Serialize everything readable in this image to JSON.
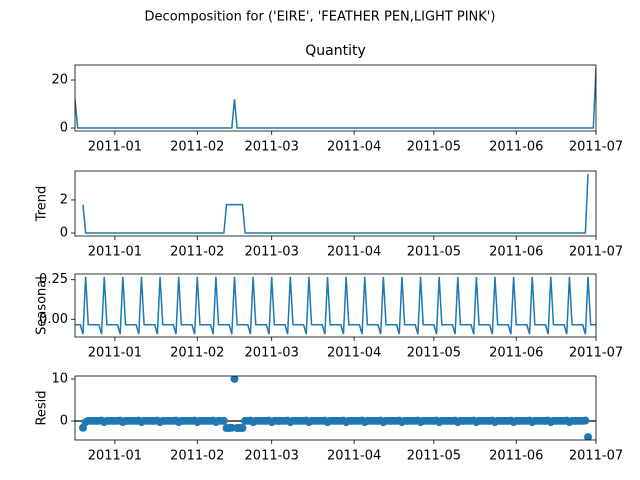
{
  "chart_data": {
    "type": "decomposition",
    "title": "Decomposition for ('EIRE', 'FEATHER PEN,LIGHT PINK')",
    "x": [
      14960,
      14961,
      14962,
      14963,
      14964,
      14965,
      14966,
      14967,
      14968,
      14969,
      14970,
      14971,
      14972,
      14973,
      14974,
      14975,
      14976,
      14977,
      14978,
      14979,
      14980,
      14981,
      14982,
      14983,
      14984,
      14985,
      14986,
      14987,
      14988,
      14989,
      14990,
      14991,
      14992,
      14993,
      14994,
      14995,
      14996,
      14997,
      14998,
      14999,
      15000,
      15001,
      15002,
      15003,
      15004,
      15005,
      15006,
      15007,
      15008,
      15009,
      15010,
      15011,
      15012,
      15013,
      15014,
      15015,
      15016,
      15017,
      15018,
      15019,
      15020,
      15021,
      15022,
      15023,
      15024,
      15025,
      15026,
      15027,
      15028,
      15029,
      15030,
      15031,
      15032,
      15033,
      15034,
      15035,
      15036,
      15037,
      15038,
      15039,
      15040,
      15041,
      15042,
      15043,
      15044,
      15045,
      15046,
      15047,
      15048,
      15049,
      15050,
      15051,
      15052,
      15053,
      15054,
      15055,
      15056,
      15057,
      15058,
      15059,
      15060,
      15061,
      15062,
      15063,
      15064,
      15065,
      15066,
      15067,
      15068,
      15069,
      15070,
      15071,
      15072,
      15073,
      15074,
      15075,
      15076,
      15077,
      15078,
      15079,
      15080,
      15081,
      15082,
      15083,
      15084,
      15085,
      15086,
      15087,
      15088,
      15089,
      15090,
      15091,
      15092,
      15093,
      15094,
      15095,
      15096,
      15097,
      15098,
      15099,
      15100,
      15101,
      15102,
      15103,
      15104,
      15105,
      15106,
      15107,
      15108,
      15109,
      15110,
      15111,
      15112,
      15113,
      15114,
      15115,
      15116,
      15117,
      15118,
      15119,
      15120,
      15121,
      15122,
      15123,
      15124,
      15125,
      15126,
      15127,
      15128,
      15129,
      15130,
      15131,
      15132,
      15133,
      15134,
      15135,
      15136,
      15137,
      15138,
      15139,
      15140,
      15141,
      15142,
      15143,
      15144,
      15145,
      15146,
      15147,
      15148,
      15149,
      15150,
      15151,
      15152,
      15153,
      15154,
      15155,
      15156
    ],
    "xlim": [
      14960,
      15156
    ],
    "xticks": [
      {
        "value": 14975,
        "label": "2011-01"
      },
      {
        "value": 15006,
        "label": "2011-02"
      },
      {
        "value": 15034,
        "label": "2011-03"
      },
      {
        "value": 15065,
        "label": "2011-04"
      },
      {
        "value": 15095,
        "label": "2011-05"
      },
      {
        "value": 15126,
        "label": "2011-06"
      },
      {
        "value": 15156,
        "label": "2011-07"
      }
    ],
    "panels": [
      {
        "type": "line",
        "title": "Quantity",
        "color": "#1f77b4",
        "ylim": [
          -1.25,
          26.25
        ],
        "yticks": [
          0,
          20
        ],
        "values": [
          12,
          0,
          0,
          0,
          0,
          0,
          0,
          0,
          0,
          0,
          0,
          0,
          0,
          0,
          0,
          0,
          0,
          0,
          0,
          0,
          0,
          0,
          0,
          0,
          0,
          0,
          0,
          0,
          0,
          0,
          0,
          0,
          0,
          0,
          0,
          0,
          0,
          0,
          0,
          0,
          0,
          0,
          0,
          0,
          0,
          0,
          0,
          0,
          0,
          0,
          0,
          0,
          0,
          0,
          0,
          0,
          0,
          0,
          0,
          0,
          12,
          0,
          0,
          0,
          0,
          0,
          0,
          0,
          0,
          0,
          0,
          0,
          0,
          0,
          0,
          0,
          0,
          0,
          0,
          0,
          0,
          0,
          0,
          0,
          0,
          0,
          0,
          0,
          0,
          0,
          0,
          0,
          0,
          0,
          0,
          0,
          0,
          0,
          0,
          0,
          0,
          0,
          0,
          0,
          0,
          0,
          0,
          0,
          0,
          0,
          0,
          0,
          0,
          0,
          0,
          0,
          0,
          0,
          0,
          0,
          0,
          0,
          0,
          0,
          0,
          0,
          0,
          0,
          0,
          0,
          0,
          0,
          0,
          0,
          0,
          0,
          0,
          0,
          0,
          0,
          0,
          0,
          0,
          0,
          0,
          0,
          0,
          0,
          0,
          0,
          0,
          0,
          0,
          0,
          0,
          0,
          0,
          0,
          0,
          0,
          0,
          0,
          0,
          0,
          0,
          0,
          0,
          0,
          0,
          0,
          0,
          0,
          0,
          0,
          0,
          0,
          0,
          0,
          0,
          0,
          0,
          0,
          0,
          0,
          0,
          0,
          0,
          0,
          0,
          0,
          0,
          0,
          0,
          0,
          0,
          0,
          25
        ]
      },
      {
        "type": "line",
        "ylabel": "Trend",
        "color": "#1f77b4",
        "ylim": [
          -0.179,
          3.75
        ],
        "yticks": [
          0,
          2
        ],
        "values": [
          null,
          null,
          null,
          1.714,
          0,
          0,
          0,
          0,
          0,
          0,
          0,
          0,
          0,
          0,
          0,
          0,
          0,
          0,
          0,
          0,
          0,
          0,
          0,
          0,
          0,
          0,
          0,
          0,
          0,
          0,
          0,
          0,
          0,
          0,
          0,
          0,
          0,
          0,
          0,
          0,
          0,
          0,
          0,
          0,
          0,
          0,
          0,
          0,
          0,
          0,
          0,
          0,
          0,
          0,
          0,
          0,
          0,
          1.714,
          1.714,
          1.714,
          1.714,
          1.714,
          1.714,
          1.714,
          0,
          0,
          0,
          0,
          0,
          0,
          0,
          0,
          0,
          0,
          0,
          0,
          0,
          0,
          0,
          0,
          0,
          0,
          0,
          0,
          0,
          0,
          0,
          0,
          0,
          0,
          0,
          0,
          0,
          0,
          0,
          0,
          0,
          0,
          0,
          0,
          0,
          0,
          0,
          0,
          0,
          0,
          0,
          0,
          0,
          0,
          0,
          0,
          0,
          0,
          0,
          0,
          0,
          0,
          0,
          0,
          0,
          0,
          0,
          0,
          0,
          0,
          0,
          0,
          0,
          0,
          0,
          0,
          0,
          0,
          0,
          0,
          0,
          0,
          0,
          0,
          0,
          0,
          0,
          0,
          0,
          0,
          0,
          0,
          0,
          0,
          0,
          0,
          0,
          0,
          0,
          0,
          0,
          0,
          0,
          0,
          0,
          0,
          0,
          0,
          0,
          0,
          0,
          0,
          0,
          0,
          0,
          0,
          0,
          0,
          0,
          0,
          0,
          0,
          0,
          0,
          0,
          0,
          0,
          0,
          0,
          0,
          0,
          0,
          0,
          0,
          0,
          0,
          0,
          3.571,
          null,
          null,
          null
        ]
      },
      {
        "type": "line",
        "ylabel": "Seasonal",
        "color": "#1f77b4",
        "ylim": [
          -0.112,
          0.286
        ],
        "yticks": [
          {
            "value": 0,
            "label": "0.00"
          },
          {
            "value": 0.25,
            "label": "0.25"
          }
        ],
        "values": [
          -0.035,
          -0.035,
          -0.035,
          -0.094,
          0.268,
          -0.035,
          -0.035,
          -0.035,
          -0.035,
          -0.035,
          -0.094,
          0.268,
          -0.035,
          -0.035,
          -0.035,
          -0.035,
          -0.035,
          -0.094,
          0.268,
          -0.035,
          -0.035,
          -0.035,
          -0.035,
          -0.035,
          -0.094,
          0.268,
          -0.035,
          -0.035,
          -0.035,
          -0.035,
          -0.035,
          -0.094,
          0.268,
          -0.035,
          -0.035,
          -0.035,
          -0.035,
          -0.035,
          -0.094,
          0.268,
          -0.035,
          -0.035,
          -0.035,
          -0.035,
          -0.035,
          -0.094,
          0.268,
          -0.035,
          -0.035,
          -0.035,
          -0.035,
          -0.035,
          -0.094,
          0.268,
          -0.035,
          -0.035,
          -0.035,
          -0.035,
          -0.035,
          -0.094,
          0.268,
          -0.035,
          -0.035,
          -0.035,
          -0.035,
          -0.035,
          -0.094,
          0.268,
          -0.035,
          -0.035,
          -0.035,
          -0.035,
          -0.035,
          -0.094,
          0.268,
          -0.035,
          -0.035,
          -0.035,
          -0.035,
          -0.035,
          -0.094,
          0.268,
          -0.035,
          -0.035,
          -0.035,
          -0.035,
          -0.035,
          -0.094,
          0.268,
          -0.035,
          -0.035,
          -0.035,
          -0.035,
          -0.035,
          -0.094,
          0.268,
          -0.035,
          -0.035,
          -0.035,
          -0.035,
          -0.035,
          -0.094,
          0.268,
          -0.035,
          -0.035,
          -0.035,
          -0.035,
          -0.035,
          -0.094,
          0.268,
          -0.035,
          -0.035,
          -0.035,
          -0.035,
          -0.035,
          -0.094,
          0.268,
          -0.035,
          -0.035,
          -0.035,
          -0.035,
          -0.035,
          -0.094,
          0.268,
          -0.035,
          -0.035,
          -0.035,
          -0.035,
          -0.035,
          -0.094,
          0.268,
          -0.035,
          -0.035,
          -0.035,
          -0.035,
          -0.035,
          -0.094,
          0.268,
          -0.035,
          -0.035,
          -0.035,
          -0.035,
          -0.035,
          -0.094,
          0.268,
          -0.035,
          -0.035,
          -0.035,
          -0.035,
          -0.035,
          -0.094,
          0.268,
          -0.035,
          -0.035,
          -0.035,
          -0.035,
          -0.035,
          -0.094,
          0.268,
          -0.035,
          -0.035,
          -0.035,
          -0.035,
          -0.035,
          -0.094,
          0.268,
          -0.035,
          -0.035,
          -0.035,
          -0.035,
          -0.035,
          -0.094,
          0.268,
          -0.035,
          -0.035,
          -0.035,
          -0.035,
          -0.035,
          -0.094,
          0.268,
          -0.035,
          -0.035,
          -0.035,
          -0.035,
          -0.035,
          -0.094,
          0.268,
          -0.035,
          -0.035,
          -0.035,
          -0.035,
          -0.035,
          -0.094,
          0.268,
          -0.035,
          -0.035,
          -0.035
        ]
      },
      {
        "type": "scatter",
        "ylabel": "Resid",
        "color": "#1f77b4",
        "ylim": [
          -4.53,
          10.71
        ],
        "yticks": [
          0,
          10
        ],
        "values": [
          null,
          null,
          null,
          -1.62,
          -0.268,
          0.035,
          0.035,
          0.035,
          0.035,
          0.035,
          0.094,
          -0.268,
          0.035,
          0.035,
          0.035,
          0.035,
          0.035,
          0.094,
          -0.268,
          0.035,
          0.035,
          0.035,
          0.035,
          0.035,
          0.094,
          -0.268,
          0.035,
          0.035,
          0.035,
          0.035,
          0.035,
          0.094,
          -0.268,
          0.035,
          0.035,
          0.035,
          0.035,
          0.035,
          0.094,
          -0.268,
          0.035,
          0.035,
          0.035,
          0.035,
          0.035,
          0.094,
          -0.268,
          0.035,
          0.035,
          0.035,
          0.035,
          0.035,
          0.094,
          -0.268,
          0.035,
          0.035,
          0.035,
          -1.679,
          -1.679,
          -1.62,
          10.018,
          -1.679,
          -1.679,
          -1.679,
          0.035,
          0.035,
          0.094,
          -0.268,
          0.035,
          0.035,
          0.035,
          0.035,
          0.035,
          0.094,
          -0.268,
          0.035,
          0.035,
          0.035,
          0.035,
          0.035,
          0.094,
          -0.268,
          0.035,
          0.035,
          0.035,
          0.035,
          0.035,
          0.094,
          -0.268,
          0.035,
          0.035,
          0.035,
          0.035,
          0.035,
          0.094,
          -0.268,
          0.035,
          0.035,
          0.035,
          0.035,
          0.035,
          0.094,
          -0.268,
          0.035,
          0.035,
          0.035,
          0.035,
          0.035,
          0.094,
          -0.268,
          0.035,
          0.035,
          0.035,
          0.035,
          0.035,
          0.094,
          -0.268,
          0.035,
          0.035,
          0.035,
          0.035,
          0.035,
          0.094,
          -0.268,
          0.035,
          0.035,
          0.035,
          0.035,
          0.035,
          0.094,
          -0.268,
          0.035,
          0.035,
          0.035,
          0.035,
          0.035,
          0.094,
          -0.268,
          0.035,
          0.035,
          0.035,
          0.035,
          0.035,
          0.094,
          -0.268,
          0.035,
          0.035,
          0.035,
          0.035,
          0.035,
          0.094,
          -0.268,
          0.035,
          0.035,
          0.035,
          0.035,
          0.035,
          0.094,
          -0.268,
          0.035,
          0.035,
          0.035,
          0.035,
          0.035,
          0.094,
          -0.268,
          0.035,
          0.035,
          0.035,
          0.035,
          0.035,
          0.094,
          -0.268,
          0.035,
          0.035,
          0.035,
          0.035,
          0.035,
          0.094,
          -0.268,
          0.035,
          0.035,
          0.035,
          0.035,
          0.035,
          0.094,
          -0.268,
          0.035,
          0.035,
          0.035,
          0.035,
          0.035,
          0.094,
          -3.839,
          null,
          null,
          null
        ]
      }
    ]
  }
}
